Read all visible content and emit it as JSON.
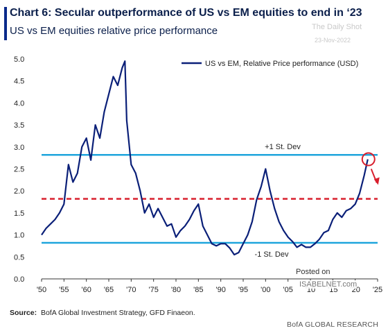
{
  "header": {
    "title": "Chart 6: Secular outperformance of US vs EM equities to end in ‘23",
    "subtitle": "US vs EM equities relative price performance"
  },
  "watermark": {
    "line1": "The Daily Shot",
    "line2": "23-Nov-2022"
  },
  "footer": {
    "source_label": "Source:",
    "source_text": "BofA Global Investment Strategy, GFD Finaeon.",
    "brand": "BofA GLOBAL RESEARCH",
    "posted_on": "Posted on",
    "isabelnet": "ISABELNET.com"
  },
  "colors": {
    "series": "#0a1f78",
    "band": "#1ea5dc",
    "mean": "#d81e2c",
    "accent": "#0a2a8a"
  },
  "chart_data": {
    "type": "line",
    "title": "Chart 6: Secular outperformance of US vs EM equities to end in ‘23",
    "subtitle": "US vs EM equities relative price performance",
    "xlabel": "",
    "ylabel": "",
    "xlim": [
      1950,
      2025
    ],
    "ylim": [
      0,
      5
    ],
    "x_ticks": [
      1950,
      1955,
      1960,
      1965,
      1970,
      1975,
      1980,
      1985,
      1990,
      1995,
      2000,
      2005,
      2010,
      2015,
      2020,
      2025
    ],
    "x_tick_labels": [
      "'50",
      "'55",
      "'60",
      "'65",
      "'70",
      "'75",
      "'80",
      "'85",
      "'90",
      "'95",
      "'00",
      "'05",
      "'10",
      "'15",
      "'20",
      "'25"
    ],
    "y_ticks": [
      0,
      0.5,
      1.0,
      1.5,
      2.0,
      2.5,
      3.0,
      3.5,
      4.0,
      4.5,
      5.0
    ],
    "y_tick_labels": [
      "0.0",
      "0.5",
      "1.0",
      "1.5",
      "2.0",
      "2.5",
      "3.0",
      "3.5",
      "4.0",
      "4.5",
      "5.0"
    ],
    "grid": false,
    "legend": {
      "position": "top-right",
      "entries": [
        "US vs EM, Relative Price performance (USD)"
      ]
    },
    "reference_lines": [
      {
        "y": 2.82,
        "label": "+1 St. Dev",
        "style": "solid"
      },
      {
        "y": 1.82,
        "label": "",
        "style": "dashed"
      },
      {
        "y": 0.82,
        "label": "-1 St. Dev",
        "style": "solid"
      }
    ],
    "annotations": [
      "circle around latest value",
      "arrow pointing down"
    ],
    "series": [
      {
        "name": "US vs EM, Relative Price performance (USD)",
        "x": [
          1950,
          1951,
          1952,
          1953,
          1954,
          1955,
          1956,
          1957,
          1958,
          1959,
          1960,
          1961,
          1962,
          1963,
          1964,
          1965,
          1966,
          1967,
          1968,
          1968.6,
          1969,
          1970,
          1971,
          1972,
          1973,
          1974,
          1975,
          1976,
          1977,
          1978,
          1979,
          1980,
          1981,
          1982,
          1983,
          1984,
          1985,
          1986,
          1987,
          1988,
          1989,
          1990,
          1991,
          1992,
          1993,
          1994,
          1995,
          1996,
          1997,
          1998,
          1999,
          2000,
          2001,
          2002,
          2003,
          2004,
          2005,
          2006,
          2007,
          2008,
          2009,
          2010,
          2011,
          2012,
          2013,
          2014,
          2015,
          2016,
          2017,
          2018,
          2019,
          2020,
          2021,
          2022,
          2022.8
        ],
        "y": [
          1.0,
          1.15,
          1.25,
          1.35,
          1.5,
          1.7,
          2.6,
          2.2,
          2.4,
          3.0,
          3.2,
          2.7,
          3.5,
          3.2,
          3.8,
          4.2,
          4.6,
          4.4,
          4.8,
          4.95,
          3.6,
          2.6,
          2.4,
          2.0,
          1.5,
          1.7,
          1.4,
          1.6,
          1.4,
          1.2,
          1.25,
          0.95,
          1.1,
          1.2,
          1.35,
          1.55,
          1.7,
          1.2,
          1.0,
          0.8,
          0.75,
          0.8,
          0.8,
          0.7,
          0.55,
          0.6,
          0.8,
          1.0,
          1.3,
          1.8,
          2.1,
          2.5,
          2.0,
          1.6,
          1.3,
          1.1,
          0.95,
          0.85,
          0.72,
          0.78,
          0.72,
          0.72,
          0.8,
          0.9,
          1.05,
          1.1,
          1.35,
          1.5,
          1.4,
          1.55,
          1.6,
          1.7,
          1.95,
          2.35,
          2.72
        ]
      }
    ]
  }
}
